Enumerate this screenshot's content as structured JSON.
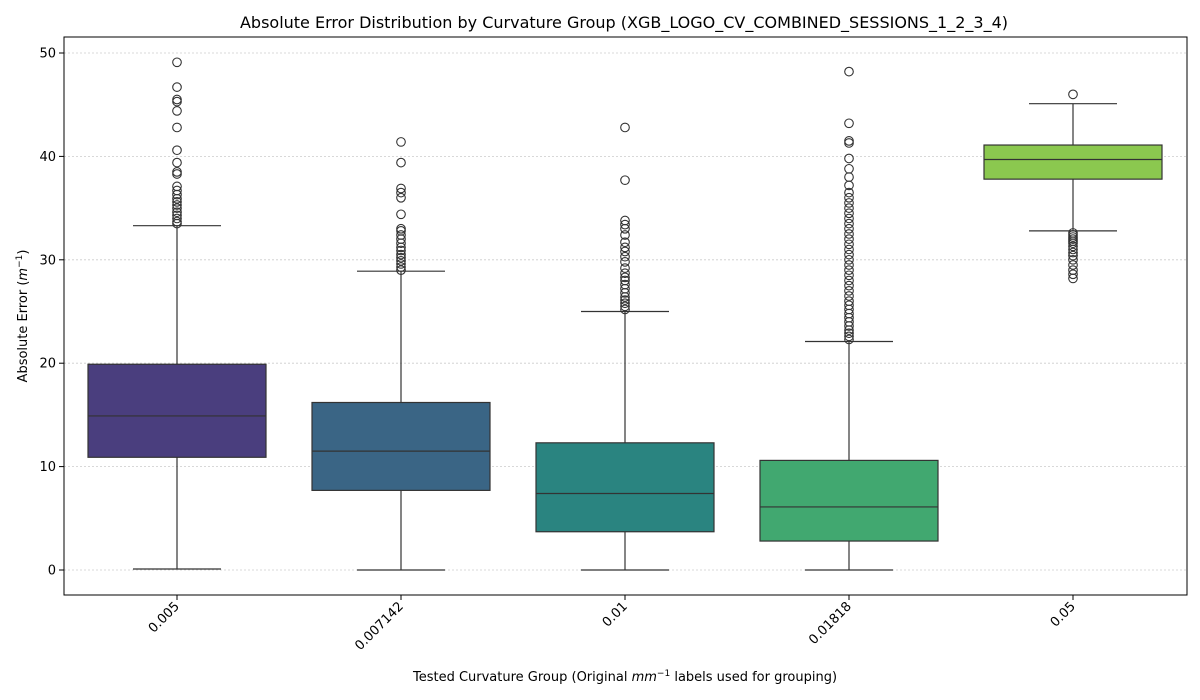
{
  "chart_data": {
    "type": "box",
    "title": "Absolute Error Distribution by Curvature Group (XGB_LOGO_CV_COMBINED_SESSIONS_1_2_3_4)",
    "xlabel_prefix": "Tested Curvature Group (Original ",
    "xlabel_unit_base": "mm",
    "xlabel_unit_exp": "−1",
    "xlabel_suffix": " labels used for grouping)",
    "ylabel_prefix": "Absolute Error (",
    "ylabel_unit_base": "m",
    "ylabel_unit_exp": "−1",
    "ylabel_suffix": ")",
    "ylim": [
      -2.3,
      52
    ],
    "yticks": [
      0,
      10,
      20,
      30,
      40,
      50
    ],
    "grid": "horizontal dotted",
    "categories": [
      "0.005",
      "0.007142",
      "0.01",
      "0.01818",
      "0.05"
    ],
    "colors": [
      "#4a3e7e",
      "#3a6585",
      "#2a8480",
      "#41a870",
      "#8bc84f"
    ],
    "boxes": [
      {
        "whisker_low": 0.1,
        "q1": 10.9,
        "median": 14.9,
        "q3": 19.9,
        "whisker_high": 33.3,
        "outliers": [
          33.5,
          33.7,
          34.0,
          34.3,
          34.6,
          35.0,
          35.3,
          35.6,
          35.9,
          36.3,
          36.7,
          37.1,
          38.3,
          38.5,
          39.4,
          40.6,
          42.8,
          44.4,
          45.3,
          45.5,
          46.7,
          49.1
        ]
      },
      {
        "whisker_low": 0.0,
        "q1": 7.7,
        "median": 11.5,
        "q3": 16.2,
        "whisker_high": 28.9,
        "outliers": [
          29.0,
          29.3,
          29.6,
          29.9,
          30.2,
          30.5,
          30.9,
          31.2,
          31.6,
          32.0,
          32.4,
          32.8,
          33.0,
          34.4,
          36.0,
          36.5,
          36.9,
          39.4,
          41.4
        ]
      },
      {
        "whisker_low": 0.0,
        "q1": 3.7,
        "median": 7.4,
        "q3": 12.3,
        "whisker_high": 25.0,
        "outliers": [
          25.2,
          25.5,
          25.8,
          26.1,
          26.4,
          26.8,
          27.2,
          27.6,
          28.0,
          28.3,
          28.7,
          29.2,
          29.8,
          30.3,
          30.8,
          31.2,
          31.7,
          32.4,
          33.0,
          33.4,
          33.8,
          37.7,
          42.8
        ]
      },
      {
        "whisker_low": 0.0,
        "q1": 2.8,
        "median": 6.1,
        "q3": 10.6,
        "whisker_high": 22.1,
        "outliers": [
          22.3,
          22.6,
          22.9,
          23.2,
          23.6,
          24.0,
          24.4,
          24.8,
          25.2,
          25.6,
          26.0,
          26.5,
          27.0,
          27.5,
          28.0,
          28.5,
          29.0,
          29.5,
          30.0,
          30.5,
          31.0,
          31.5,
          32.0,
          32.5,
          33.0,
          33.5,
          34.0,
          34.5,
          35.0,
          35.5,
          36.0,
          36.5,
          37.2,
          38.0,
          38.8,
          39.8,
          41.3,
          41.5,
          43.2,
          48.2
        ]
      },
      {
        "whisker_low": 32.8,
        "q1": 37.8,
        "median": 39.7,
        "q3": 41.1,
        "whisker_high": 45.1,
        "outliers": [
          28.2,
          28.6,
          29.0,
          29.5,
          30.0,
          30.4,
          30.7,
          31.0,
          31.3,
          31.6,
          31.8,
          32.0,
          32.2,
          32.4,
          32.6,
          46.0
        ]
      }
    ]
  }
}
